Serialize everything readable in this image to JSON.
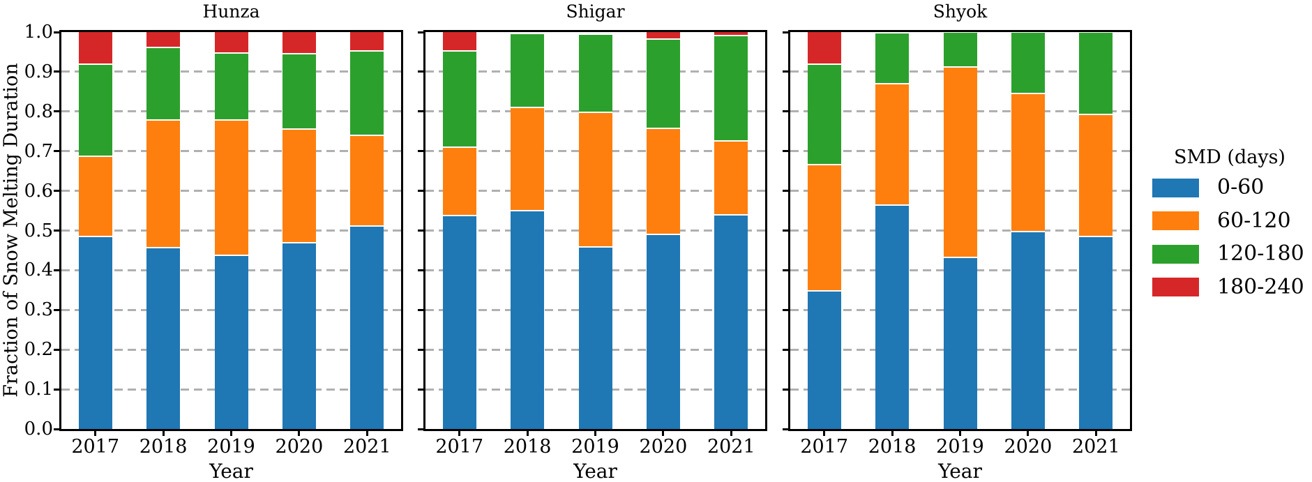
{
  "figure": {
    "ylabel": "Fraction of Snow Melting Duration",
    "background": "#ffffff",
    "spine_color": "#000000",
    "grid_color": "#b0b0b0",
    "legend": {
      "title": "SMD (days)",
      "position": "right-of-plots",
      "entries": [
        {
          "label": "0-60",
          "color": "#1f77b4"
        },
        {
          "label": "60-120",
          "color": "#ff7f0e"
        },
        {
          "label": "120-180",
          "color": "#2ca02c"
        },
        {
          "label": "180-240",
          "color": "#d62728"
        }
      ]
    }
  },
  "chart_data": [
    {
      "type": "bar",
      "stacked": true,
      "title": "Hunza",
      "xlabel": "Year",
      "ylabel": "Fraction of Snow Melting Duration",
      "categories": [
        "2017",
        "2018",
        "2019",
        "2020",
        "2021"
      ],
      "ylim": [
        0.0,
        1.0
      ],
      "yticks": [
        0.0,
        0.1,
        0.2,
        0.3,
        0.4,
        0.5,
        0.6,
        0.7,
        0.8,
        0.9,
        1.0
      ],
      "grid": "horizontal-dashed",
      "series": [
        {
          "name": "0-60",
          "color": "#1f77b4",
          "values": [
            0.483,
            0.456,
            0.436,
            0.467,
            0.51
          ]
        },
        {
          "name": "60-120",
          "color": "#ff7f0e",
          "values": [
            0.202,
            0.321,
            0.341,
            0.287,
            0.228
          ]
        },
        {
          "name": "120-180",
          "color": "#2ca02c",
          "values": [
            0.232,
            0.183,
            0.169,
            0.19,
            0.212
          ]
        },
        {
          "name": "180-240",
          "color": "#d62728",
          "values": [
            0.083,
            0.04,
            0.054,
            0.056,
            0.05
          ]
        }
      ]
    },
    {
      "type": "bar",
      "stacked": true,
      "title": "Shigar",
      "xlabel": "Year",
      "categories": [
        "2017",
        "2018",
        "2019",
        "2020",
        "2021"
      ],
      "ylim": [
        0.0,
        1.0
      ],
      "yticks": [
        0.0,
        0.1,
        0.2,
        0.3,
        0.4,
        0.5,
        0.6,
        0.7,
        0.8,
        0.9,
        1.0
      ],
      "grid": "horizontal-dashed",
      "series": [
        {
          "name": "0-60",
          "color": "#1f77b4",
          "values": [
            0.536,
            0.549,
            0.457,
            0.489,
            0.537
          ]
        },
        {
          "name": "60-120",
          "color": "#ff7f0e",
          "values": [
            0.172,
            0.26,
            0.34,
            0.266,
            0.187
          ]
        },
        {
          "name": "120-180",
          "color": "#2ca02c",
          "values": [
            0.243,
            0.186,
            0.196,
            0.225,
            0.266
          ]
        },
        {
          "name": "180-240",
          "color": "#d62728",
          "values": [
            0.049,
            0.0,
            0.0,
            0.02,
            0.01
          ]
        }
      ]
    },
    {
      "type": "bar",
      "stacked": true,
      "title": "Shyok",
      "xlabel": "Year",
      "categories": [
        "2017",
        "2018",
        "2019",
        "2020",
        "2021"
      ],
      "ylim": [
        0.0,
        1.0
      ],
      "yticks": [
        0.0,
        0.1,
        0.2,
        0.3,
        0.4,
        0.5,
        0.6,
        0.7,
        0.8,
        0.9,
        1.0
      ],
      "grid": "horizontal-dashed",
      "series": [
        {
          "name": "0-60",
          "color": "#1f77b4",
          "values": [
            0.347,
            0.562,
            0.43,
            0.496,
            0.483
          ]
        },
        {
          "name": "60-120",
          "color": "#ff7f0e",
          "values": [
            0.317,
            0.307,
            0.48,
            0.347,
            0.308
          ]
        },
        {
          "name": "120-180",
          "color": "#2ca02c",
          "values": [
            0.253,
            0.128,
            0.088,
            0.155,
            0.207
          ]
        },
        {
          "name": "180-240",
          "color": "#d62728",
          "values": [
            0.083,
            0.0,
            0.0,
            0.0,
            0.0
          ]
        }
      ]
    }
  ]
}
